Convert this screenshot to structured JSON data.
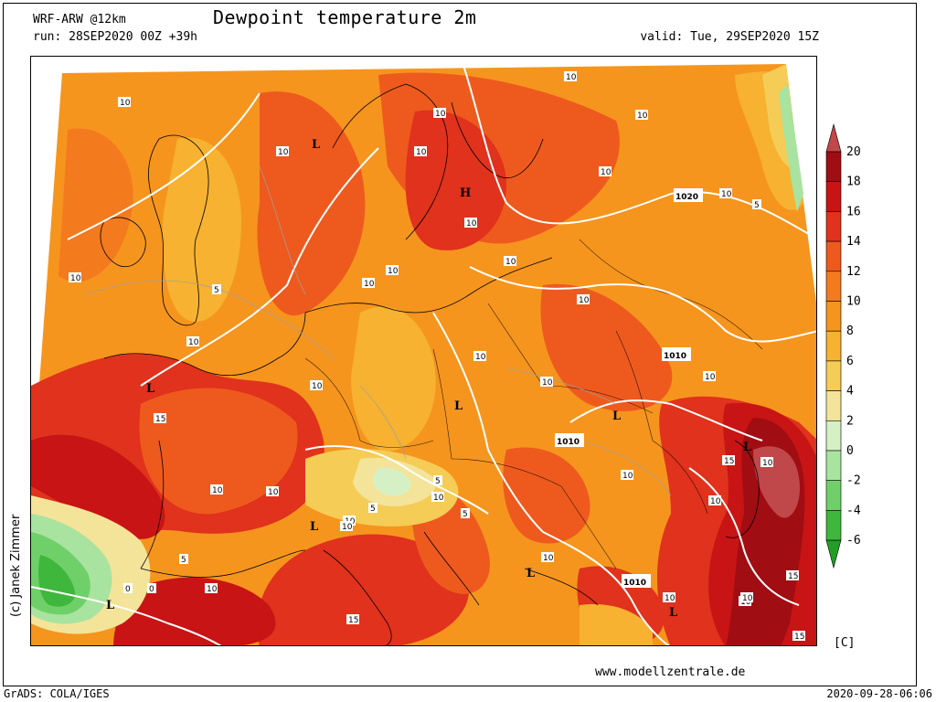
{
  "header": {
    "model": "WRF-ARW @12km",
    "run": "run: 28SEP2020 00Z +39h",
    "title": "Dewpoint temperature 2m",
    "valid": "valid: Tue, 29SEP2020 15Z"
  },
  "copyright": "(c) Janek Zimmer",
  "units": "[C]",
  "website": "www.modellzentrale.de",
  "footer": {
    "left": "GrADS: COLA/IGES",
    "right": "2020-09-28-06:06"
  },
  "colorbar": {
    "labels": [
      "20",
      "18",
      "16",
      "14",
      "12",
      "10",
      "8",
      "6",
      "4",
      "2",
      "0",
      "-2",
      "-4",
      "-6"
    ],
    "colors": [
      "#c0474a",
      "#a00d12",
      "#c81414",
      "#e0321c",
      "#ee5a1e",
      "#f47a1e",
      "#f5951e",
      "#f6b230",
      "#f5cc56",
      "#f3e49a",
      "#d6f0c6",
      "#a9e3a0",
      "#6fd06a",
      "#3fb73c",
      "#229e26"
    ]
  },
  "isobar_labels": [
    "1020",
    "1010",
    "1010",
    "1010"
  ],
  "contour_labels": [
    "10",
    "10",
    "10",
    "10",
    "10",
    "10",
    "10",
    "10",
    "10",
    "10",
    "10",
    "10",
    "10",
    "10",
    "10",
    "10",
    "10",
    "10",
    "10",
    "10",
    "10",
    "10",
    "10",
    "10",
    "10",
    "10",
    "10",
    "10",
    "5",
    "5",
    "5",
    "5",
    "5",
    "5",
    "0",
    "0",
    "15",
    "15",
    "15",
    "15",
    "15",
    "10",
    "10",
    "10",
    "10"
  ],
  "pressure_centers": [
    "L",
    "L",
    "L",
    "L",
    "L",
    "L",
    "L",
    "L",
    "L",
    "H"
  ]
}
